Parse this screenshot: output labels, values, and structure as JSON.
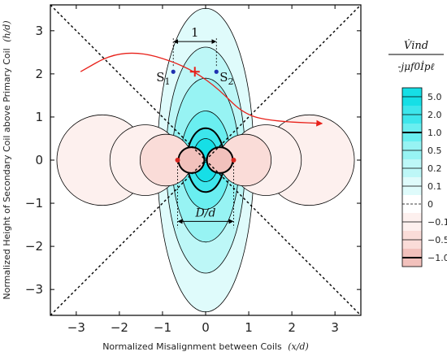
{
  "chart_data": {
    "type": "contour",
    "xlabel": "Normalized Misalignment between Coils",
    "xlabel_var": "(x/d)",
    "ylabel": "Normalized Height of Secondary Coil above Primary Coil",
    "ylabel_var": "(h/d)",
    "xlim": [
      -3.6,
      3.6
    ],
    "ylim": [
      -3.6,
      3.6
    ],
    "xticks": [
      -3,
      -2,
      -1,
      0,
      1,
      2,
      3
    ],
    "yticks": [
      -3,
      -2,
      -1,
      0,
      1,
      2,
      3
    ],
    "xtick_labels": [
      "−3",
      "−2",
      "−1",
      "0",
      "1",
      "2",
      "3"
    ],
    "ytick_labels": [
      "−3",
      "−2",
      "−1",
      "0",
      "1",
      "2",
      "3"
    ],
    "colorbar": {
      "title_numerator": "V̇ind",
      "title_denominator": "-jμf0İpℓ",
      "levels": [
        {
          "label": "5.0",
          "color": "#16dfe6"
        },
        {
          "label": "2.0",
          "color": "#3de6ec"
        },
        {
          "label": "1.0",
          "color": "#6aeef0"
        },
        {
          "label": "0.5",
          "color": "#97f3f3"
        },
        {
          "label": "0.2",
          "color": "#bdf7f7"
        },
        {
          "label": "0.1",
          "color": "#dffbfb"
        },
        {
          "label": "0",
          "color": "#ffffff"
        },
        {
          "label": "−0.1",
          "color": "#fdf0ee"
        },
        {
          "label": "−0.5",
          "color": "#fadcd8"
        },
        {
          "label": "−1.0",
          "color": "#f2c1bc"
        }
      ],
      "bold_levels": [
        "1.0",
        "−1.0"
      ],
      "dashed_levels": [
        "0"
      ]
    },
    "annotations": {
      "spacing_label": "1",
      "diameter_label": "D/d",
      "s1_label": "S",
      "s1_sub": "1",
      "s2_label": "S",
      "s2_sub": "2"
    },
    "markers": {
      "s1": [
        -0.75,
        2.05
      ],
      "s2": [
        0.25,
        2.05
      ],
      "red_cross": [
        -0.25,
        2.05
      ],
      "red_dots": [
        [
          -0.65,
          0
        ],
        [
          0.65,
          0
        ]
      ]
    },
    "trajectory": [
      [
        -2.9,
        2.05
      ],
      [
        -2.2,
        2.45
      ],
      [
        -1.5,
        2.5
      ],
      [
        -0.8,
        2.3
      ],
      [
        -0.25,
        2.05
      ],
      [
        0.3,
        1.65
      ],
      [
        0.9,
        1.05
      ],
      [
        1.6,
        0.9
      ],
      [
        2.7,
        0.85
      ]
    ],
    "diagonals": [
      "y = x",
      "y = -x"
    ]
  }
}
